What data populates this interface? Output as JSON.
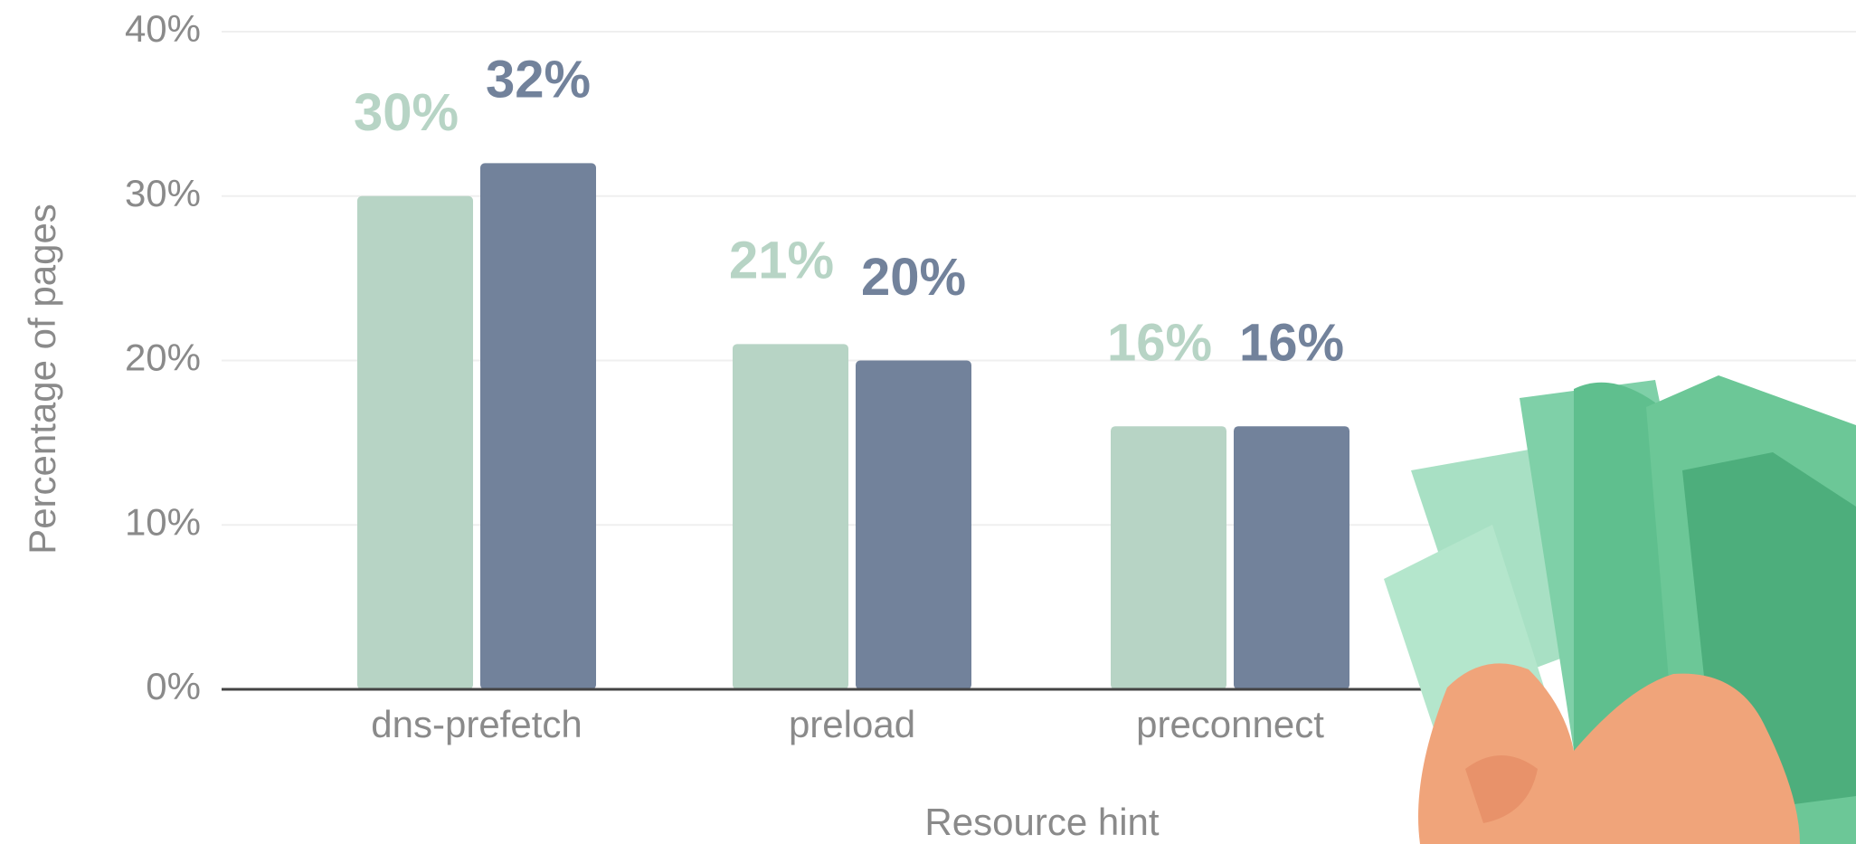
{
  "chart_data": {
    "type": "bar",
    "x_label": "Resource hint",
    "y_label": "Percentage of pages",
    "categories": [
      "dns-prefetch",
      "preload",
      "preconnect"
    ],
    "series": [
      {
        "color": "#b7d4c5",
        "values": [
          30,
          21,
          16
        ],
        "value_labels": [
          "30%",
          "21%",
          "16%"
        ]
      },
      {
        "color": "#72829b",
        "values": [
          32,
          20,
          16
        ],
        "value_labels": [
          "32%",
          "20%",
          "16%"
        ]
      }
    ],
    "ylim": [
      0,
      40
    ],
    "yticks": [
      {
        "value": 0,
        "label": "0%"
      },
      {
        "value": 10,
        "label": "10%"
      },
      {
        "value": 20,
        "label": "20%"
      },
      {
        "value": 30,
        "label": "30%"
      },
      {
        "value": 40,
        "label": "40%"
      }
    ],
    "grid": true
  }
}
